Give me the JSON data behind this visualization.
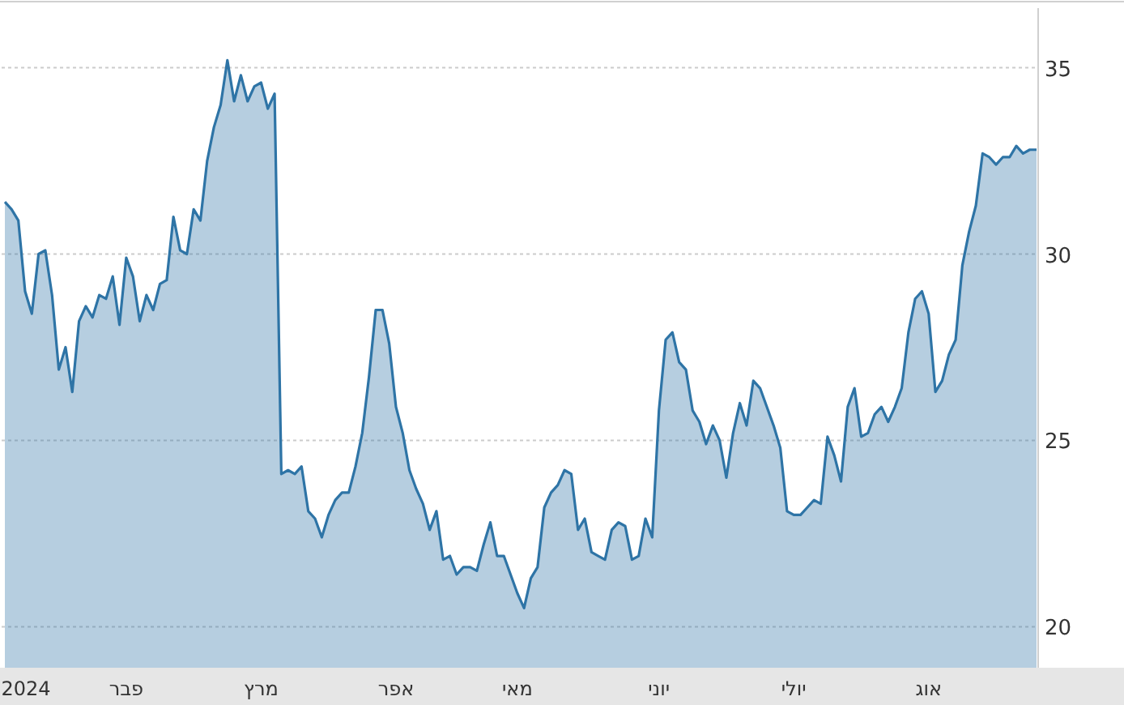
{
  "chart_data": {
    "type": "area",
    "categories": [
      null,
      null,
      "2024",
      null,
      null,
      null,
      null,
      null,
      null,
      null,
      null,
      null,
      null,
      null,
      null,
      null,
      null,
      null,
      "פבר",
      null,
      null,
      null,
      null,
      null,
      null,
      null,
      null,
      null,
      null,
      null,
      null,
      null,
      null,
      null,
      null,
      null,
      null,
      null,
      "מרץ",
      null,
      null,
      null,
      null,
      null,
      null,
      null,
      null,
      null,
      null,
      null,
      null,
      null,
      null,
      null,
      null,
      null,
      null,
      null,
      "אפר",
      null,
      null,
      null,
      null,
      null,
      null,
      null,
      null,
      null,
      null,
      null,
      null,
      null,
      null,
      null,
      null,
      null,
      "מאי",
      null,
      null,
      null,
      null,
      null,
      null,
      null,
      null,
      null,
      null,
      null,
      null,
      null,
      null,
      null,
      null,
      null,
      null,
      null,
      null,
      "יוני",
      null,
      null,
      null,
      null,
      null,
      null,
      null,
      null,
      null,
      null,
      null,
      null,
      null,
      null,
      null,
      null,
      null,
      null,
      null,
      "יולי",
      null,
      null,
      null,
      null,
      null,
      null,
      null,
      null,
      null,
      null,
      null,
      null,
      null,
      null,
      null,
      null,
      null,
      null,
      null,
      "אוג",
      null,
      null,
      null,
      null,
      null,
      null,
      null,
      null,
      null,
      null,
      null,
      null,
      null,
      null,
      null,
      null
    ],
    "series": [
      {
        "color": "#2e74a6",
        "values": [
          31.4,
          31.2,
          30.9,
          29.0,
          28.4,
          30.0,
          30.1,
          28.9,
          26.9,
          27.5,
          26.3,
          28.2,
          28.6,
          28.3,
          28.9,
          28.8,
          29.4,
          28.1,
          29.9,
          29.4,
          28.2,
          28.9,
          28.5,
          29.2,
          29.3,
          31.0,
          30.1,
          30.0,
          31.2,
          30.9,
          32.5,
          33.4,
          34.0,
          35.2,
          34.1,
          34.8,
          34.1,
          34.5,
          34.6,
          33.9,
          34.3,
          24.1,
          24.2,
          24.1,
          24.3,
          23.1,
          22.9,
          22.4,
          23.0,
          23.4,
          23.6,
          23.6,
          24.3,
          25.2,
          26.7,
          28.5,
          28.5,
          27.6,
          25.9,
          25.2,
          24.2,
          23.7,
          23.3,
          22.6,
          23.1,
          21.8,
          21.9,
          21.4,
          21.6,
          21.6,
          21.5,
          22.2,
          22.8,
          21.9,
          21.9,
          21.4,
          20.9,
          20.5,
          21.3,
          21.6,
          23.2,
          23.6,
          23.8,
          24.2,
          24.1,
          22.6,
          22.9,
          22.0,
          21.9,
          21.8,
          22.6,
          22.8,
          22.7,
          21.8,
          21.9,
          22.9,
          22.4,
          25.8,
          27.7,
          27.9,
          27.1,
          26.9,
          25.8,
          25.5,
          24.9,
          25.4,
          25.0,
          24.0,
          25.2,
          26.0,
          25.4,
          26.6,
          26.4,
          25.9,
          25.4,
          24.8,
          23.1,
          23.0,
          23.0,
          23.2,
          23.4,
          23.3,
          25.1,
          24.6,
          23.9,
          25.9,
          26.4,
          25.1,
          25.2,
          25.7,
          25.9,
          25.5,
          25.9,
          26.4,
          27.9,
          28.8,
          29.0,
          28.4,
          26.3,
          26.6,
          27.3,
          27.7,
          29.7,
          30.6,
          31.3,
          32.7,
          32.6,
          32.4,
          32.6,
          32.6,
          32.9,
          32.7,
          32.8,
          32.8
        ]
      }
    ],
    "ylim": [
      18.9,
      36.6
    ],
    "yticks": [
      20,
      25,
      30,
      35
    ],
    "grid": "y"
  }
}
